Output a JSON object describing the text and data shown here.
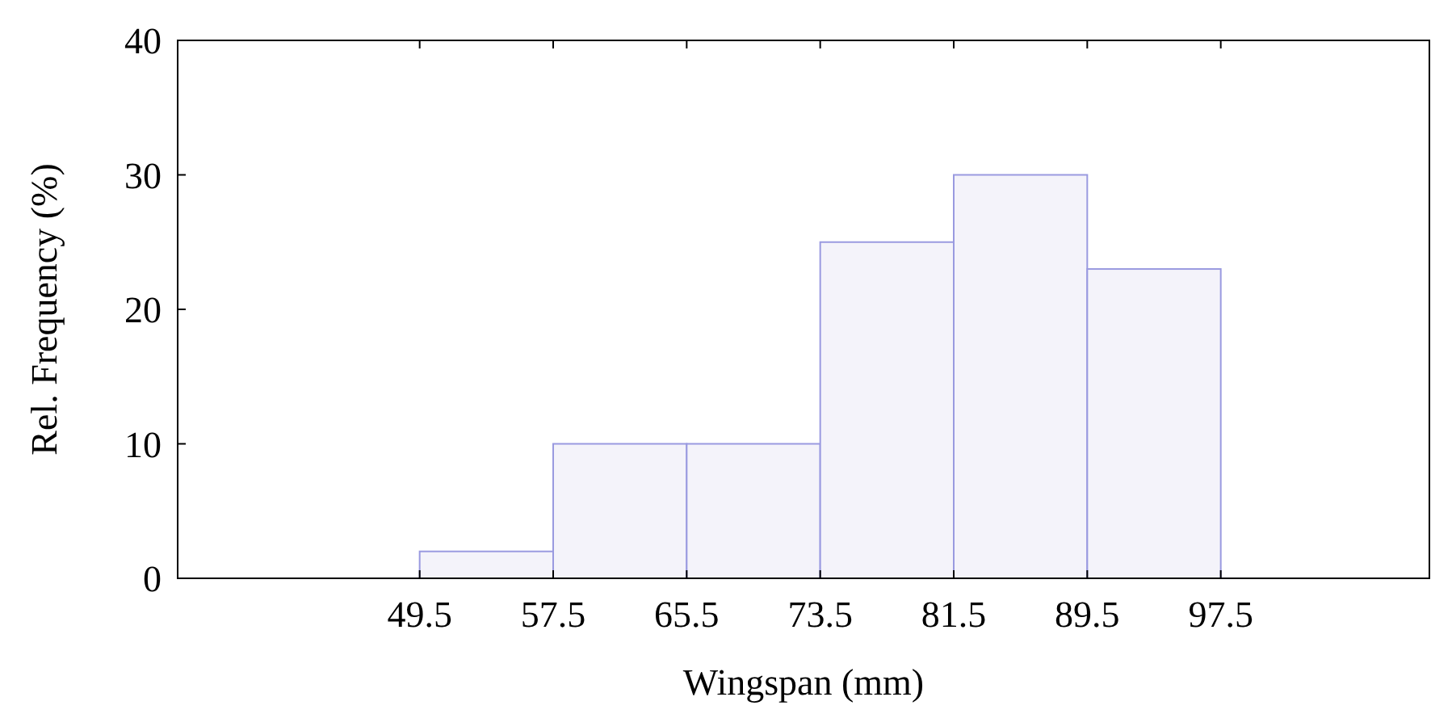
{
  "chart_data": {
    "type": "histogram",
    "xlabel": "Wingspan (mm)",
    "ylabel": "Rel. Frequency (%)",
    "bins": [
      49.5,
      57.5,
      65.5,
      73.5,
      81.5,
      89.5,
      97.5
    ],
    "values": [
      2,
      10,
      10,
      25,
      30,
      23
    ],
    "color": "#f4f3fa",
    "xlim": [
      35,
      110
    ],
    "xticks": [
      49.5,
      57.5,
      65.5,
      73.5,
      81.5,
      89.5,
      97.5
    ],
    "ylim": [
      0,
      40
    ],
    "yticks": [
      0,
      10,
      20,
      30,
      40
    ],
    "grid": false
  }
}
